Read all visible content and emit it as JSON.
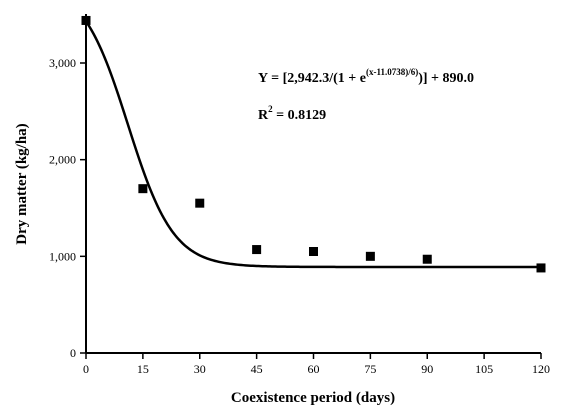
{
  "chart_data": {
    "type": "scatter",
    "xlabel": "Coexistence period (days)",
    "ylabel": "Dry matter (kg/ha)",
    "xlim": [
      0,
      120
    ],
    "ylim": [
      0,
      3500
    ],
    "x_ticks": [
      0,
      15,
      30,
      45,
      60,
      75,
      90,
      105,
      120
    ],
    "x_tick_labels": [
      "0",
      "15",
      "30",
      "45",
      "60",
      "75",
      "90",
      "105",
      "120"
    ],
    "y_ticks": [
      0,
      1000,
      2000,
      3000
    ],
    "y_tick_labels": [
      "0",
      "1,000",
      "2,000",
      "3,000"
    ],
    "grid": false,
    "points": [
      {
        "x": 0,
        "y": 3440
      },
      {
        "x": 15,
        "y": 1700
      },
      {
        "x": 30,
        "y": 1550
      },
      {
        "x": 45,
        "y": 1070
      },
      {
        "x": 60,
        "y": 1050
      },
      {
        "x": 75,
        "y": 1000
      },
      {
        "x": 90,
        "y": 970
      },
      {
        "x": 120,
        "y": 880
      }
    ],
    "fit": {
      "a": 2942.3,
      "x0": 11.0738,
      "b": 6,
      "c": 890.0
    },
    "equation": {
      "lhs": "Y = [2,942.3/(1 + e",
      "exponent": "(x-11.0738)/6)",
      "rhs": ")] + 890.0",
      "r2_prefix": "R",
      "r2_exponent": "2",
      "r2_value": " = 0.8129"
    }
  }
}
